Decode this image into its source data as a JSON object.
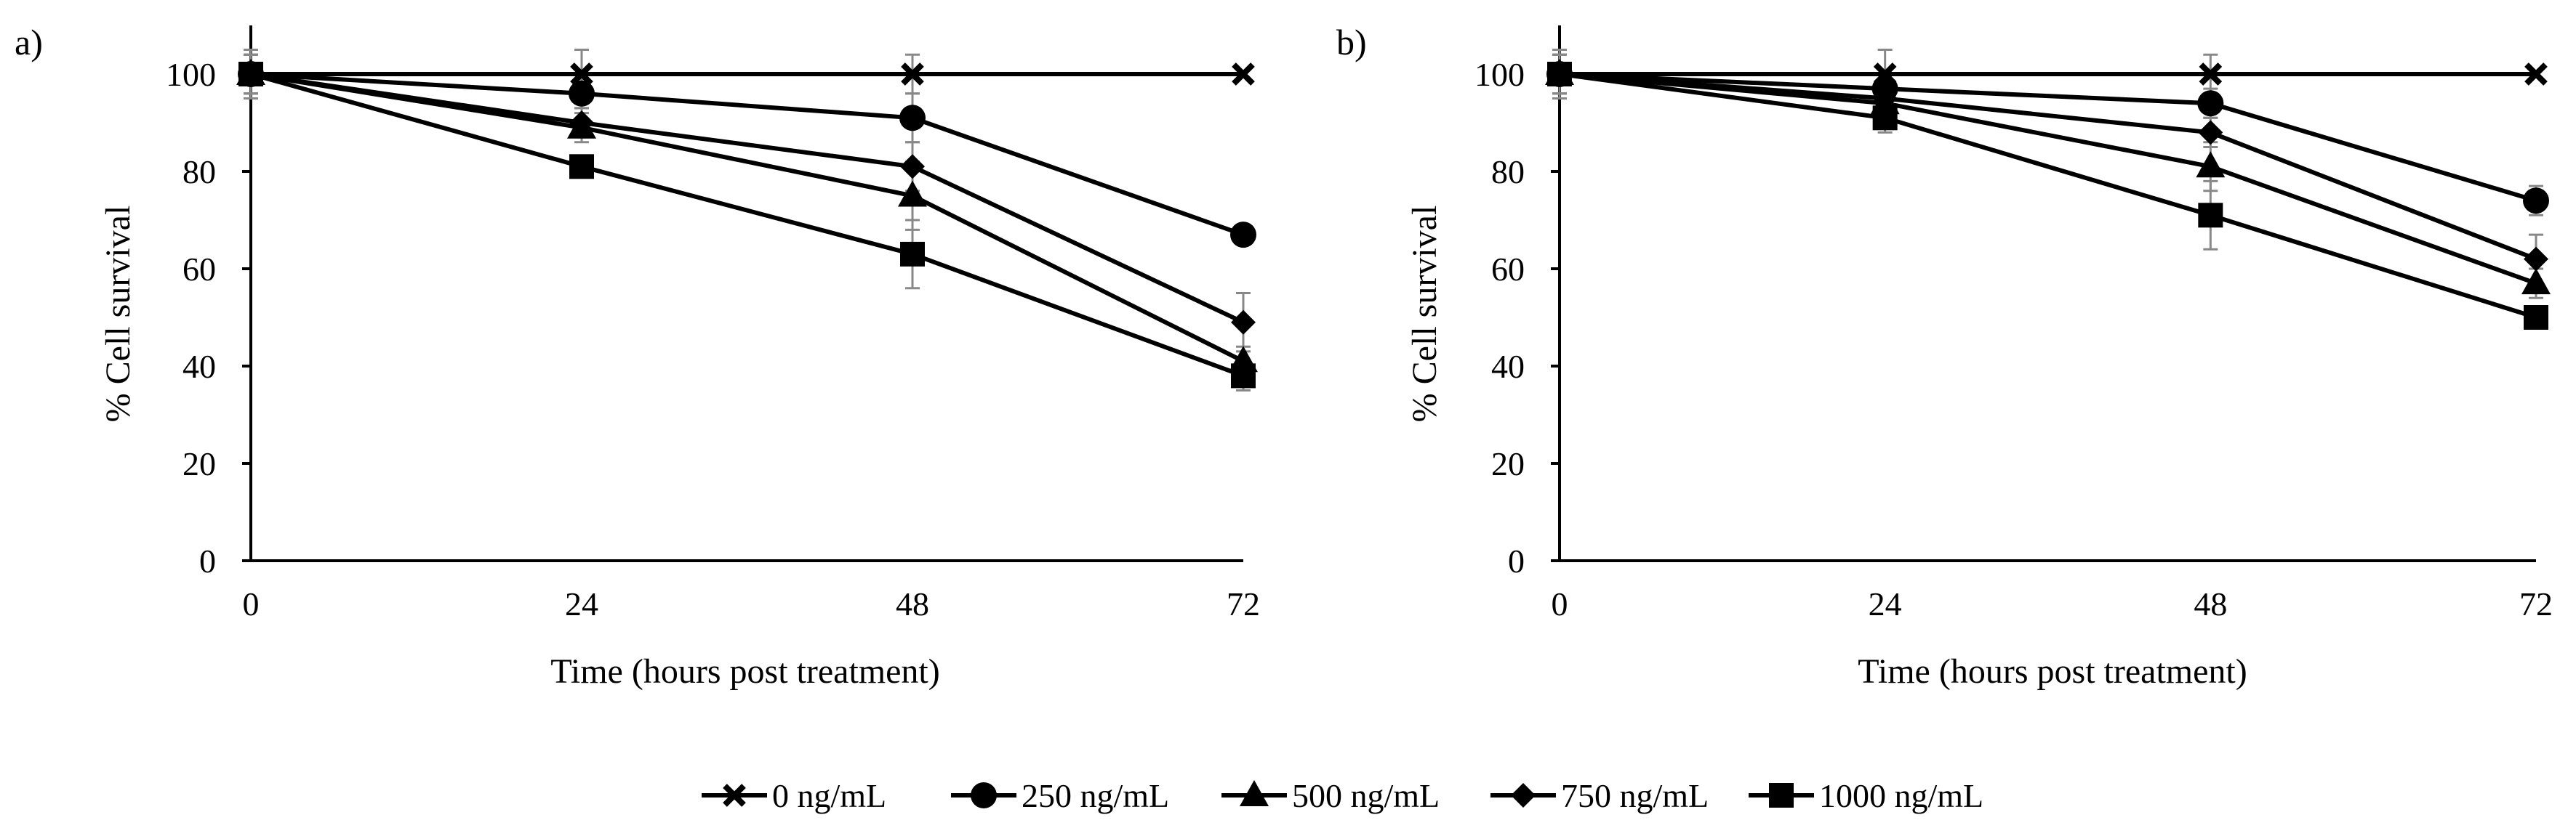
{
  "legend": {
    "entries": [
      {
        "label": "0 ng/mL",
        "marker": "x-icon"
      },
      {
        "label": "250 ng/mL",
        "marker": "circle-icon"
      },
      {
        "label": "500 ng/mL",
        "marker": "triangle-icon"
      },
      {
        "label": "750 ng/mL",
        "marker": "diamond-icon"
      },
      {
        "label": "1000 ng/mL",
        "marker": "square-icon"
      }
    ]
  },
  "chart_data": [
    {
      "panel": "a)",
      "type": "line",
      "title": "",
      "xlabel": "Time  (hours post treatment)",
      "ylabel": "% Cell survival",
      "x": [
        0,
        24,
        48,
        72
      ],
      "x_ticks": [
        "0",
        "24",
        "48",
        "72"
      ],
      "y_ticks": [
        "0",
        "20",
        "40",
        "60",
        "80",
        "100"
      ],
      "xlim": [
        0,
        72
      ],
      "ylim": [
        0,
        110
      ],
      "grid": false,
      "series": [
        {
          "name": "0 ng/mL",
          "marker": "x",
          "values": [
            100,
            100,
            100,
            100
          ],
          "errors": [
            5,
            5,
            4,
            0
          ]
        },
        {
          "name": "250 ng/mL",
          "marker": "circle",
          "values": [
            100,
            96,
            91,
            67
          ],
          "errors": [
            4,
            3,
            5,
            2
          ]
        },
        {
          "name": "500 ng/mL",
          "marker": "triangle",
          "values": [
            100,
            89,
            75,
            41
          ],
          "errors": [
            4,
            3,
            7,
            3
          ]
        },
        {
          "name": "750 ng/mL",
          "marker": "diamond",
          "values": [
            100,
            90,
            81,
            49
          ],
          "errors": [
            4,
            3,
            5,
            6
          ]
        },
        {
          "name": "1000 ng/mL",
          "marker": "square",
          "values": [
            100,
            81,
            63,
            38
          ],
          "errors": [
            4,
            2,
            7,
            3
          ]
        }
      ]
    },
    {
      "panel": "b)",
      "type": "line",
      "title": "",
      "xlabel": "Time  (hours post treatment)",
      "ylabel": "% Cell survival",
      "x": [
        0,
        24,
        48,
        72
      ],
      "x_ticks": [
        "0",
        "24",
        "48",
        "72"
      ],
      "y_ticks": [
        "0",
        "20",
        "40",
        "60",
        "80",
        "100"
      ],
      "xlim": [
        0,
        72
      ],
      "ylim": [
        0,
        110
      ],
      "grid": false,
      "series": [
        {
          "name": "0 ng/mL",
          "marker": "x",
          "values": [
            100,
            100,
            100,
            100
          ],
          "errors": [
            5,
            5,
            4,
            0
          ]
        },
        {
          "name": "250 ng/mL",
          "marker": "circle",
          "values": [
            100,
            97,
            94,
            74
          ],
          "errors": [
            4,
            3,
            3,
            3
          ]
        },
        {
          "name": "500 ng/mL",
          "marker": "triangle",
          "values": [
            100,
            94,
            81,
            57
          ],
          "errors": [
            4,
            3,
            5,
            3
          ]
        },
        {
          "name": "750 ng/mL",
          "marker": "diamond",
          "values": [
            100,
            95,
            88,
            62
          ],
          "errors": [
            4,
            3,
            3,
            5
          ]
        },
        {
          "name": "1000 ng/mL",
          "marker": "square",
          "values": [
            100,
            91,
            71,
            50
          ],
          "errors": [
            4,
            3,
            7,
            2
          ]
        }
      ]
    }
  ]
}
